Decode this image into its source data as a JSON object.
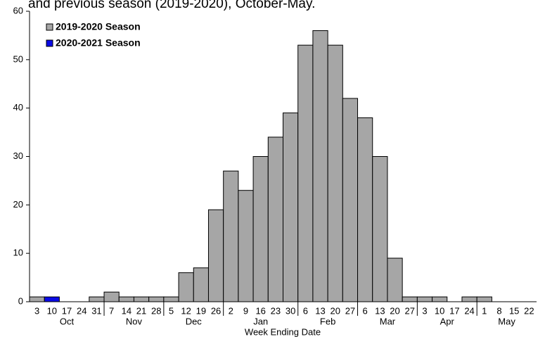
{
  "chart_data": {
    "type": "bar",
    "title": "and previous season (2019-2020), October-May.",
    "x_label": "Week Ending Date",
    "categories": [
      "3",
      "10",
      "17",
      "24",
      "31",
      "7",
      "14",
      "21",
      "28",
      "5",
      "12",
      "19",
      "26",
      "2",
      "9",
      "16",
      "23",
      "30",
      "6",
      "13",
      "20",
      "27",
      "6",
      "13",
      "20",
      "27",
      "3",
      "10",
      "17",
      "24",
      "1",
      "8",
      "15",
      "22"
    ],
    "months": [
      "Oct",
      "Nov",
      "Dec",
      "Jan",
      "Feb",
      "Mar",
      "Apr",
      "May"
    ],
    "series": [
      {
        "name": "2019-2020 Season",
        "color": "#a6a6a6",
        "values": [
          1,
          0,
          0,
          0,
          1,
          2,
          1,
          1,
          1,
          1,
          6,
          7,
          19,
          27,
          23,
          30,
          34,
          39,
          53,
          56,
          53,
          42,
          38,
          30,
          9,
          1,
          1,
          1,
          0,
          1,
          1,
          0,
          0,
          0
        ]
      },
      {
        "name": "2020-2021 Season",
        "color": "#0a0ae6",
        "values": [
          0,
          1,
          null,
          null,
          null,
          null,
          null,
          null,
          null,
          null,
          null,
          null,
          null,
          null,
          null,
          null,
          null,
          null,
          null,
          null,
          null,
          null,
          null,
          null,
          null,
          null,
          null,
          null,
          null,
          null,
          null,
          null,
          null,
          null
        ]
      }
    ],
    "ylim": [
      0,
      60
    ],
    "yticks": [
      0,
      10,
      20,
      30,
      40,
      50,
      60
    ],
    "legend": "upper-left"
  }
}
